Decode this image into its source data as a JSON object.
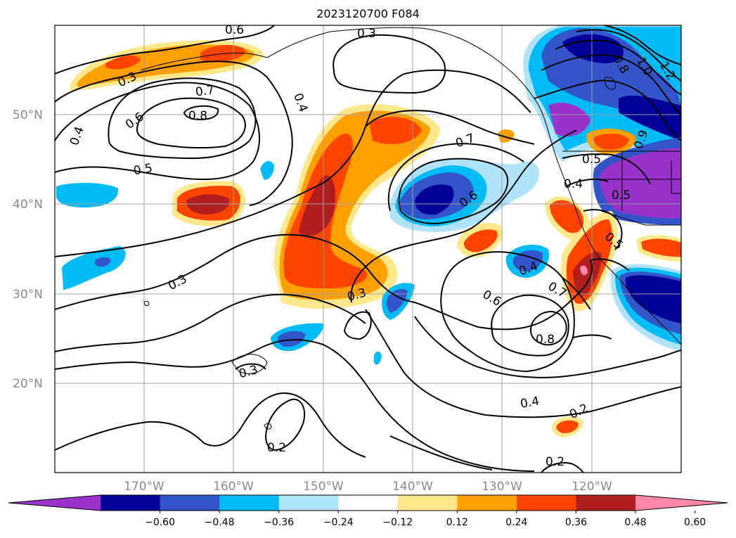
{
  "title": "2023120700 F084",
  "map": {
    "lat_labels": [
      "50°N",
      "40°N",
      "30°N",
      "20°N"
    ],
    "lon_labels": [
      "170°W",
      "160°W",
      "150°W",
      "140°W",
      "130°W",
      "120°W"
    ],
    "grid": true
  },
  "colorbar": {
    "ticks": [
      "−0.60",
      "−0.48",
      "−0.36",
      "−0.24",
      "−0.12",
      "0.12",
      "0.24",
      "0.36",
      "0.48",
      "0.60"
    ],
    "colors": [
      "#9933cc",
      "#000099",
      "#3355cc",
      "#00bbf5",
      "#aee3fa",
      "#ffffff",
      "#ffe88a",
      "#ff9f00",
      "#ff4400",
      "#b01e1e",
      "#ff88aa"
    ],
    "extend": "both"
  },
  "contour_labels": [
    {
      "text": "0.3"
    },
    {
      "text": "0.6"
    },
    {
      "text": "0.3"
    },
    {
      "text": "0.7"
    },
    {
      "text": "0.8"
    },
    {
      "text": "0.6"
    },
    {
      "text": "0.4"
    },
    {
      "text": "0.4"
    },
    {
      "text": "0.5"
    },
    {
      "text": "0.3"
    },
    {
      "text": "0.3"
    },
    {
      "text": "0.7"
    },
    {
      "text": "0.6"
    },
    {
      "text": "0.4"
    },
    {
      "text": "0.5"
    },
    {
      "text": "0.5"
    },
    {
      "text": "0.5"
    },
    {
      "text": "0.4"
    },
    {
      "text": "0.6"
    },
    {
      "text": "0.7"
    },
    {
      "text": "0.8"
    },
    {
      "text": "0.4"
    },
    {
      "text": "0.2"
    },
    {
      "text": "0.2"
    },
    {
      "text": "0.2"
    },
    {
      "text": "0.3"
    },
    {
      "text": "1.0"
    },
    {
      "text": "1.2"
    },
    {
      "text": "0.8"
    },
    {
      "text": "0.9"
    }
  ],
  "legend_colors": {
    "land_stroke": "#000000",
    "grid": "#a0a0a0"
  }
}
